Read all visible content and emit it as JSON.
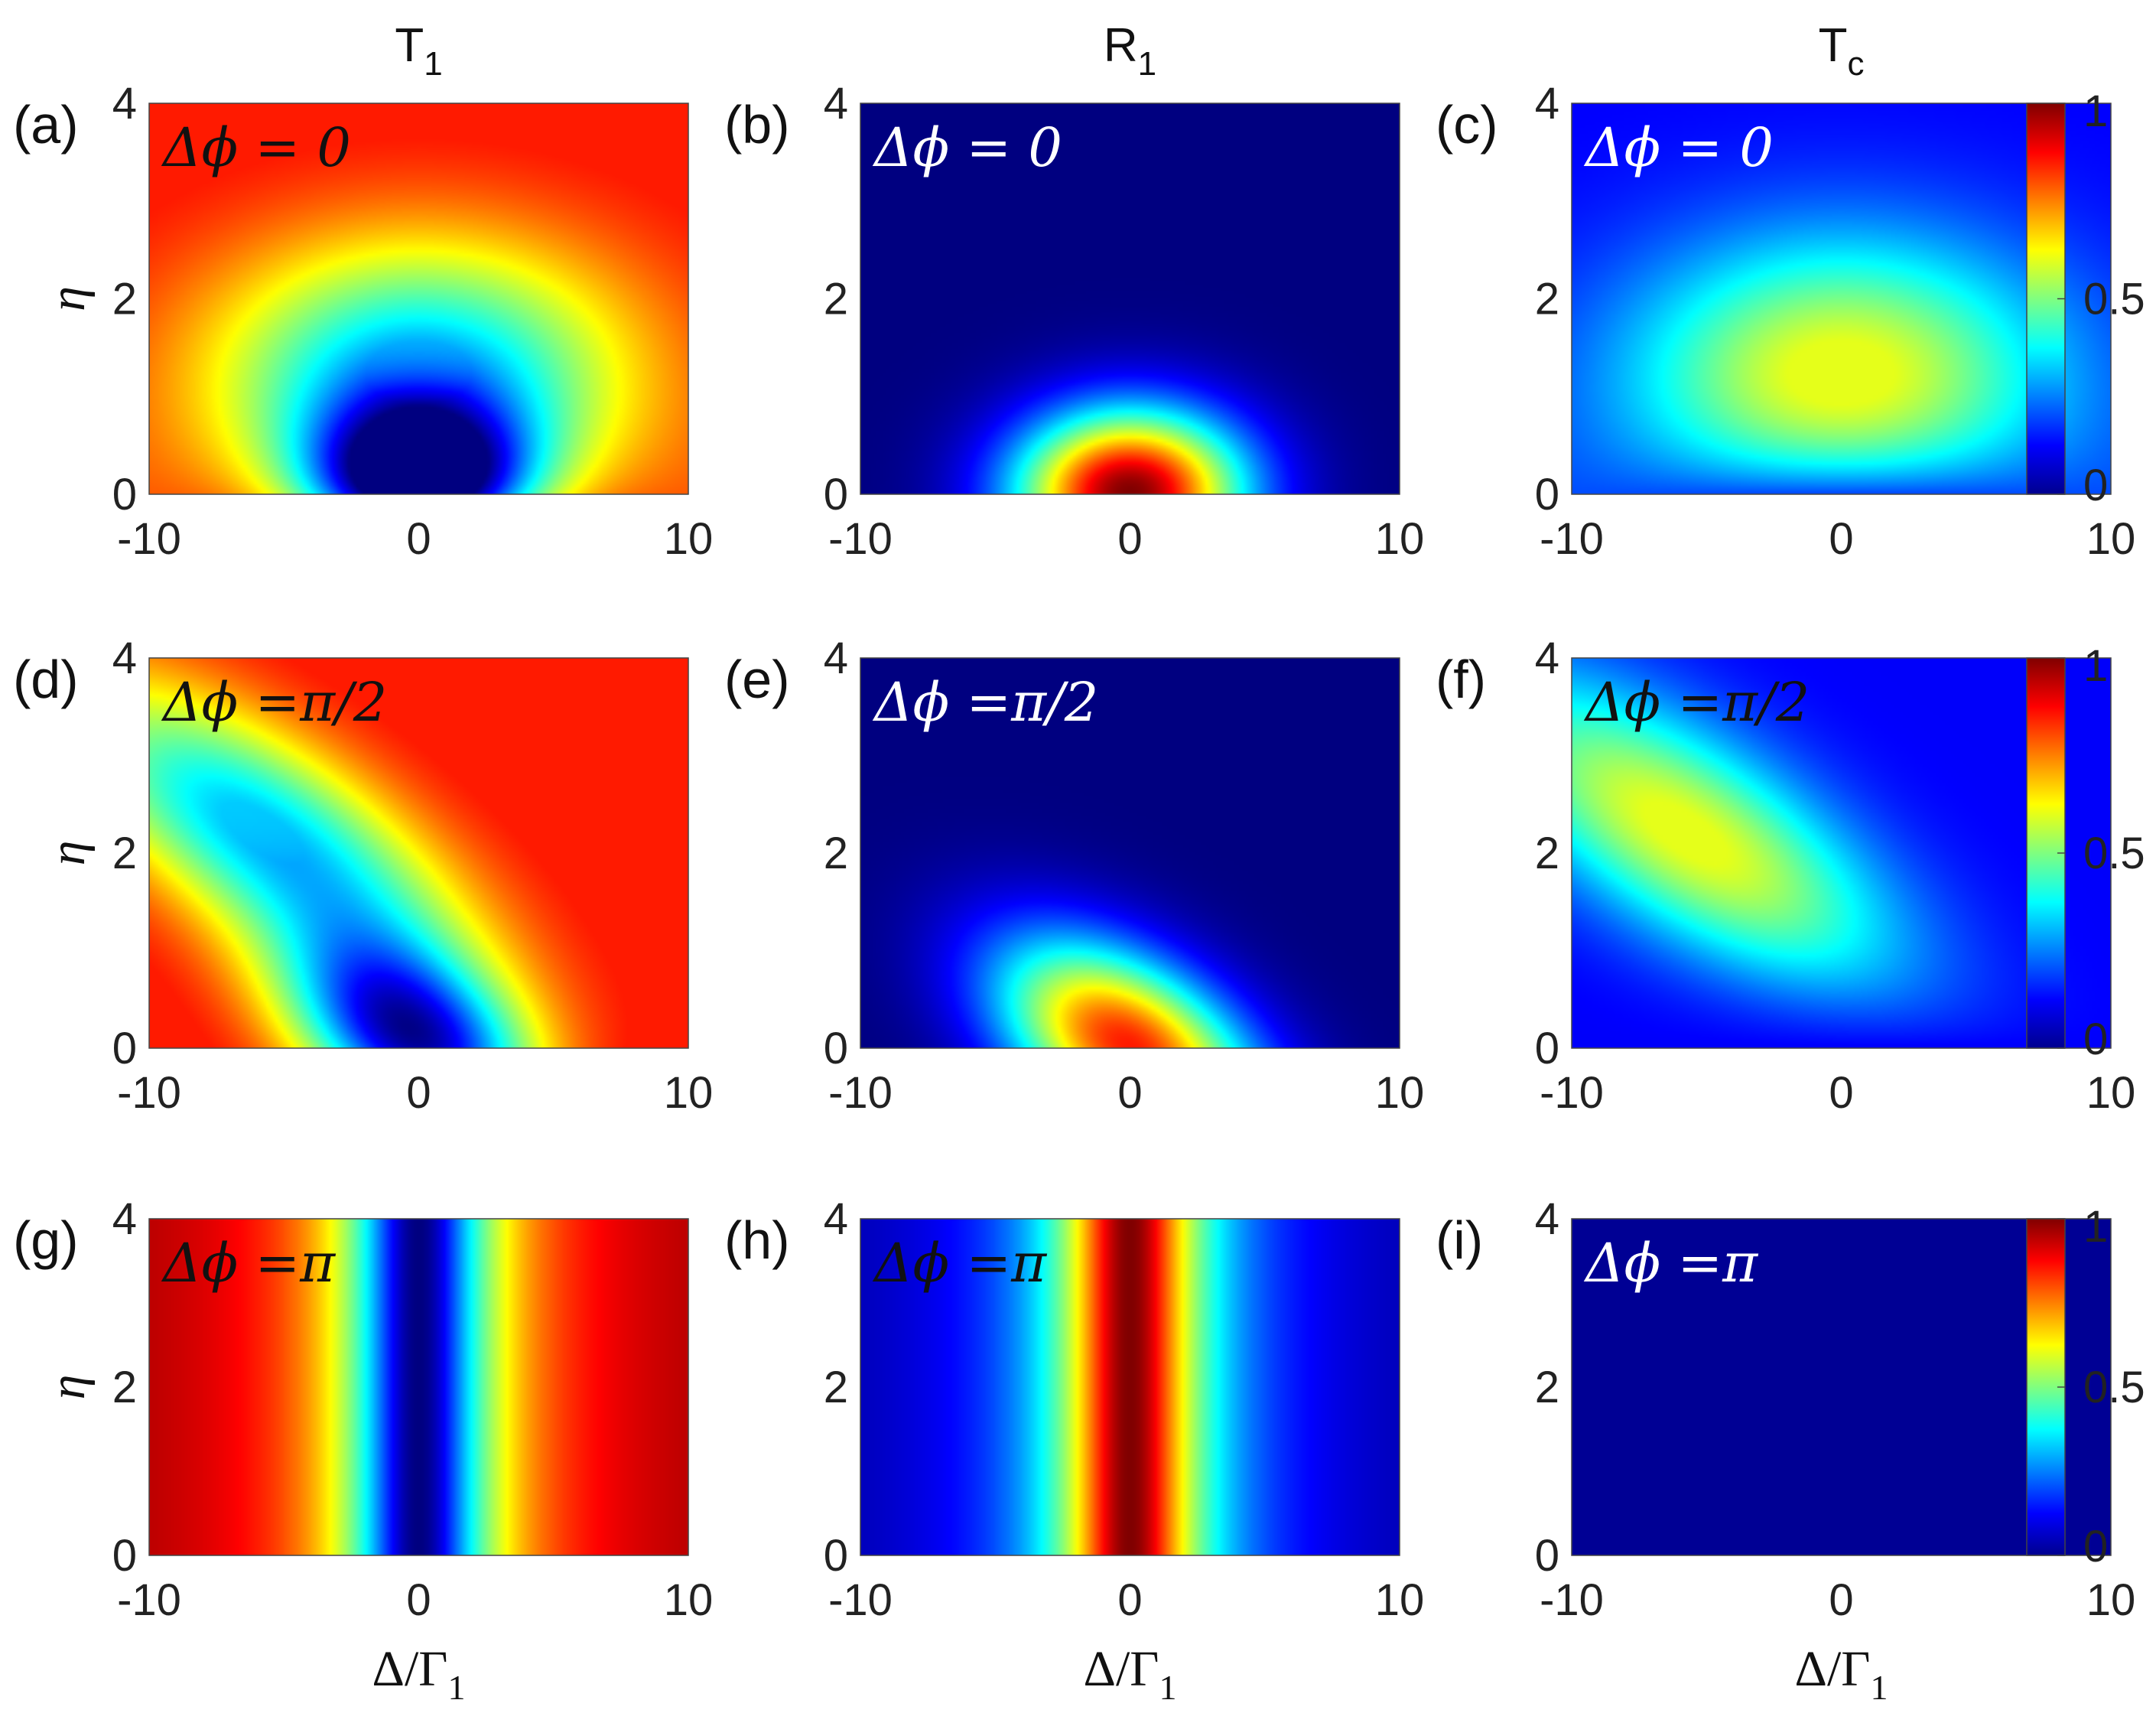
{
  "chart_data": {
    "type": "heatmap",
    "column_titles": [
      {
        "main": "T",
        "sub": "1"
      },
      {
        "main": "R",
        "sub": "1"
      },
      {
        "main": "T",
        "sub": "c"
      }
    ],
    "ylabel": "η",
    "xlabel": {
      "main": "Δ/Γ",
      "sub": "1"
    },
    "xlim": [
      -10,
      10
    ],
    "ylim": [
      0,
      4
    ],
    "xticks": [
      "-10",
      "0",
      "10"
    ],
    "yticks": [
      "0",
      "2",
      "4"
    ],
    "colormap": "jet",
    "colorbar": {
      "ticks": [
        "0",
        "0.5",
        "1"
      ],
      "range": [
        0,
        1
      ]
    },
    "annotation_colors": {
      "dark": "#111111",
      "light": "#ffffff"
    },
    "panels": [
      {
        "label": "(a)",
        "quantity": "T1",
        "annotation": "Δϕ  = 0",
        "ann_color": "dark"
      },
      {
        "label": "(b)",
        "quantity": "R1",
        "annotation": "Δϕ  = 0",
        "ann_color": "light"
      },
      {
        "label": "(c)",
        "quantity": "Tc",
        "annotation": "Δϕ  = 0",
        "ann_color": "light"
      },
      {
        "label": "(d)",
        "quantity": "T1",
        "annotation": "Δϕ  =π/2",
        "ann_color": "dark"
      },
      {
        "label": "(e)",
        "quantity": "R1",
        "annotation": "Δϕ  =π/2",
        "ann_color": "light"
      },
      {
        "label": "(f)",
        "quantity": "Tc",
        "annotation": "Δϕ  =π/2",
        "ann_color": "dark"
      },
      {
        "label": "(g)",
        "quantity": "T1",
        "annotation": "Δϕ  =π",
        "ann_color": "dark"
      },
      {
        "label": "(h)",
        "quantity": "R1",
        "annotation": "Δϕ  =π",
        "ann_color": "dark"
      },
      {
        "label": "(i)",
        "quantity": "Tc",
        "annotation": "Δϕ  =π",
        "ann_color": "light"
      }
    ]
  }
}
